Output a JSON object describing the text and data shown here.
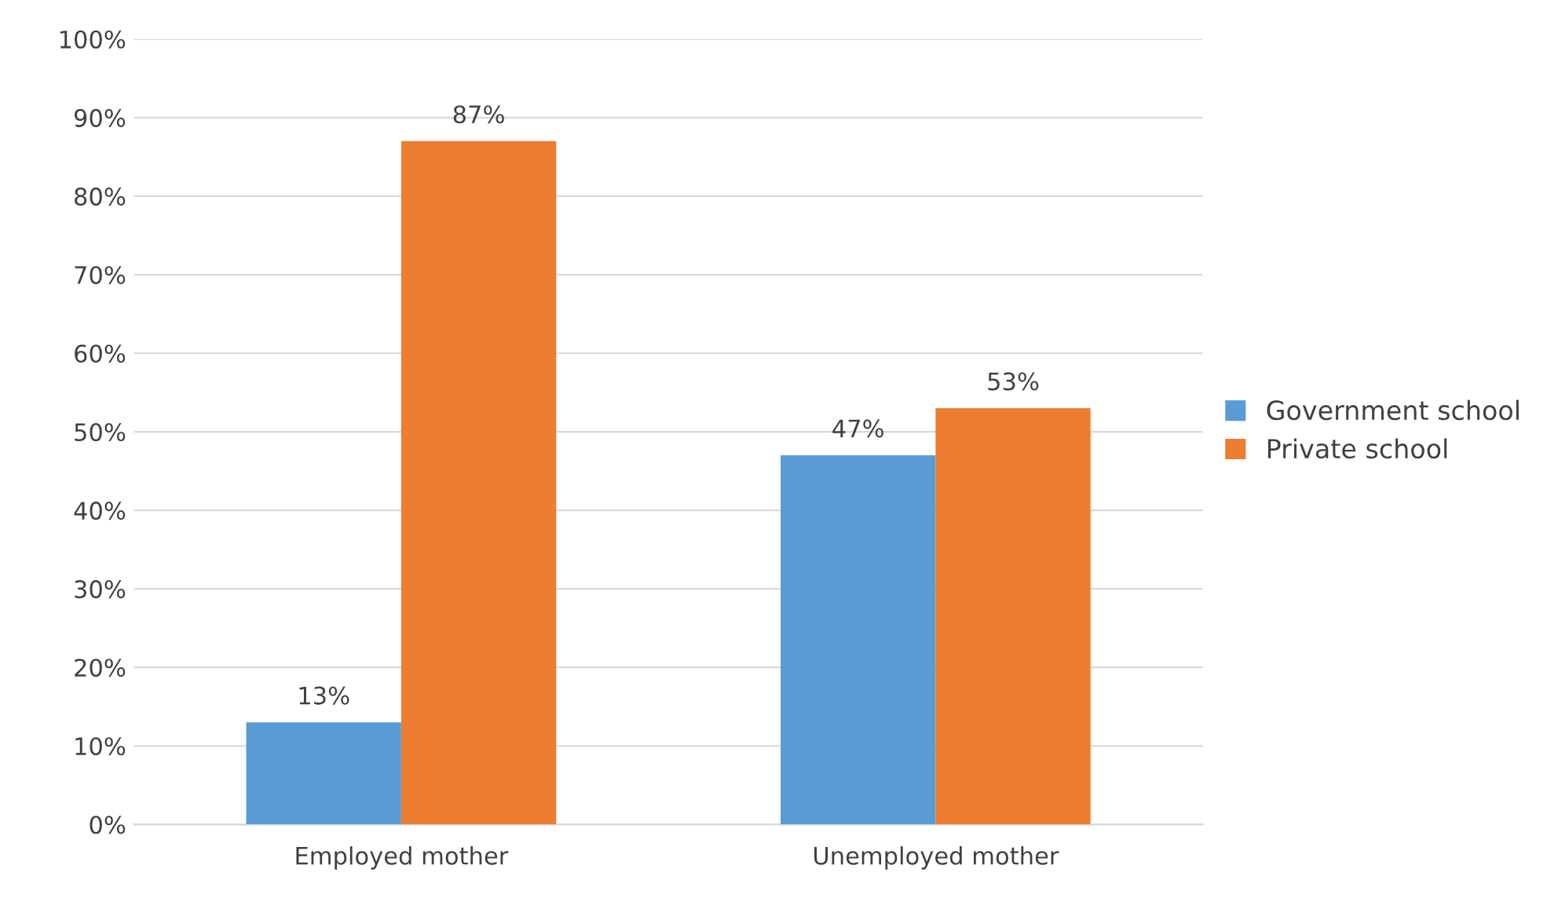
{
  "chart_data": {
    "type": "bar",
    "categories": [
      "Employed mother",
      "Unemployed mother"
    ],
    "series": [
      {
        "name": "Government school",
        "color": "#5b9bd5",
        "values": [
          13,
          47
        ],
        "value_labels": [
          "13%",
          "47%"
        ]
      },
      {
        "name": "Private school",
        "color": "#ed7d31",
        "values": [
          87,
          53
        ],
        "value_labels": [
          "87%",
          "53%"
        ]
      }
    ],
    "ylim": [
      0,
      100
    ],
    "yticks": [
      {
        "value": 0,
        "label": "0%"
      },
      {
        "value": 10,
        "label": "10%"
      },
      {
        "value": 20,
        "label": "20%"
      },
      {
        "value": 30,
        "label": "30%"
      },
      {
        "value": 40,
        "label": "40%"
      },
      {
        "value": 50,
        "label": "50%"
      },
      {
        "value": 60,
        "label": "60%"
      },
      {
        "value": 70,
        "label": "70%"
      },
      {
        "value": 80,
        "label": "80%"
      },
      {
        "value": 90,
        "label": "90%"
      },
      {
        "value": 100,
        "label": "100%"
      }
    ],
    "grid": "y",
    "legend": "right"
  }
}
